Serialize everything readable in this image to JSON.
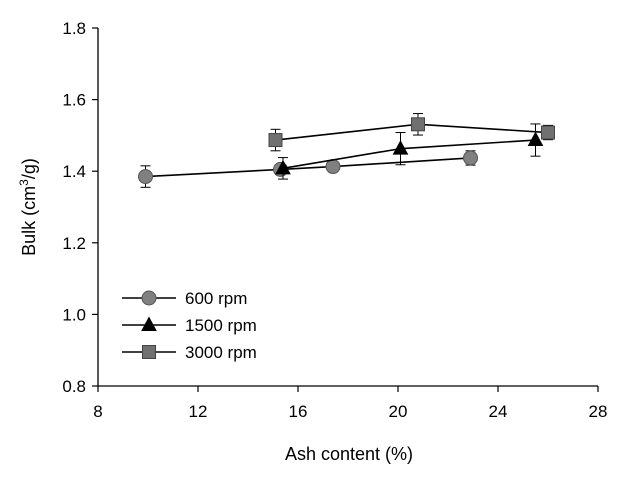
{
  "chart_data": {
    "type": "line",
    "title": "",
    "xlabel": "Ash content (%)",
    "ylabel_main": "Bulk (cm",
    "ylabel_sup": "3",
    "ylabel_tail": "/g)",
    "xlim": [
      8,
      28
    ],
    "ylim": [
      0.8,
      1.8
    ],
    "x_ticks": [
      "8",
      "12",
      "16",
      "20",
      "24",
      "28"
    ],
    "y_ticks": [
      "0.8",
      "1.0",
      "1.2",
      "1.4",
      "1.6",
      "1.8"
    ],
    "grid": false,
    "legend_position": "bottom-left",
    "series": [
      {
        "name": "600 rpm",
        "marker": "circle",
        "color": "#808080",
        "points": [
          {
            "x": 9.9,
            "y": 1.385,
            "err": 0.03
          },
          {
            "x": 15.3,
            "y": 1.405,
            "err": 0.0
          },
          {
            "x": 17.4,
            "y": 1.413,
            "err": 0.0
          },
          {
            "x": 22.9,
            "y": 1.437,
            "err": 0.02
          }
        ]
      },
      {
        "name": "1500 rpm",
        "marker": "triangle",
        "color": "#000000",
        "points": [
          {
            "x": 15.4,
            "y": 1.408,
            "err": 0.03
          },
          {
            "x": 20.1,
            "y": 1.463,
            "err": 0.045
          },
          {
            "x": 25.5,
            "y": 1.487,
            "err": 0.045
          }
        ]
      },
      {
        "name": "3000 rpm",
        "marker": "square",
        "color": "#707070",
        "points": [
          {
            "x": 15.1,
            "y": 1.487,
            "err": 0.03
          },
          {
            "x": 20.8,
            "y": 1.531,
            "err": 0.03
          },
          {
            "x": 26.0,
            "y": 1.508,
            "err": 0.02
          }
        ]
      }
    ]
  }
}
